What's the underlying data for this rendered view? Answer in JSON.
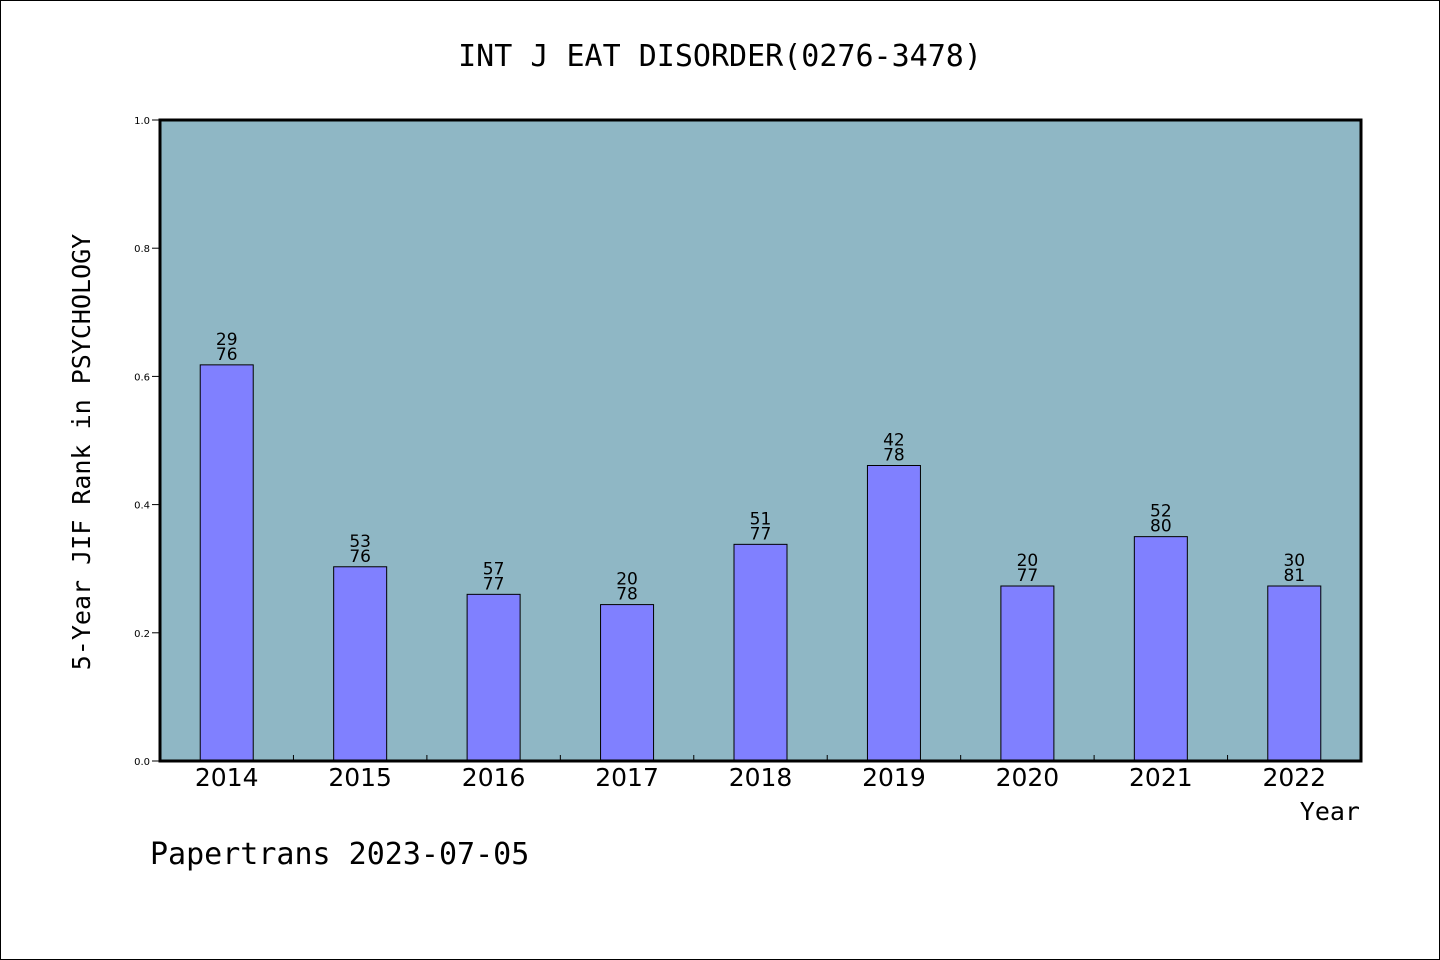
{
  "chart_data": {
    "type": "bar",
    "title": "INT J EAT DISORDER(0276-3478)",
    "xlabel": "Year",
    "ylabel": "5-Year JIF Rank in PSYCHOLOGY",
    "ylim": [
      0,
      1.0
    ],
    "yticks": [
      "0.0",
      "0.2",
      "0.4",
      "0.6",
      "0.8",
      "1.0"
    ],
    "categories": [
      "2014",
      "2015",
      "2016",
      "2017",
      "2018",
      "2019",
      "2020",
      "2021",
      "2022"
    ],
    "values": [
      0.618,
      0.303,
      0.26,
      0.244,
      0.338,
      0.461,
      0.273,
      0.35,
      0.273
    ],
    "rank_labels": [
      {
        "rank": "29",
        "total": "76"
      },
      {
        "rank": "53",
        "total": "76"
      },
      {
        "rank": "57",
        "total": "77"
      },
      {
        "rank": "20",
        "total": "78"
      },
      {
        "rank": "51",
        "total": "77"
      },
      {
        "rank": "42",
        "total": "78"
      },
      {
        "rank": "20",
        "total": "77"
      },
      {
        "rank": "52",
        "total": "80"
      },
      {
        "rank": "30",
        "total": "81"
      }
    ],
    "grid": false,
    "colors": {
      "plot_bg": "#8fb7c5",
      "bar": "#8080ff"
    }
  },
  "footer": "Papertrans 2023-07-05"
}
